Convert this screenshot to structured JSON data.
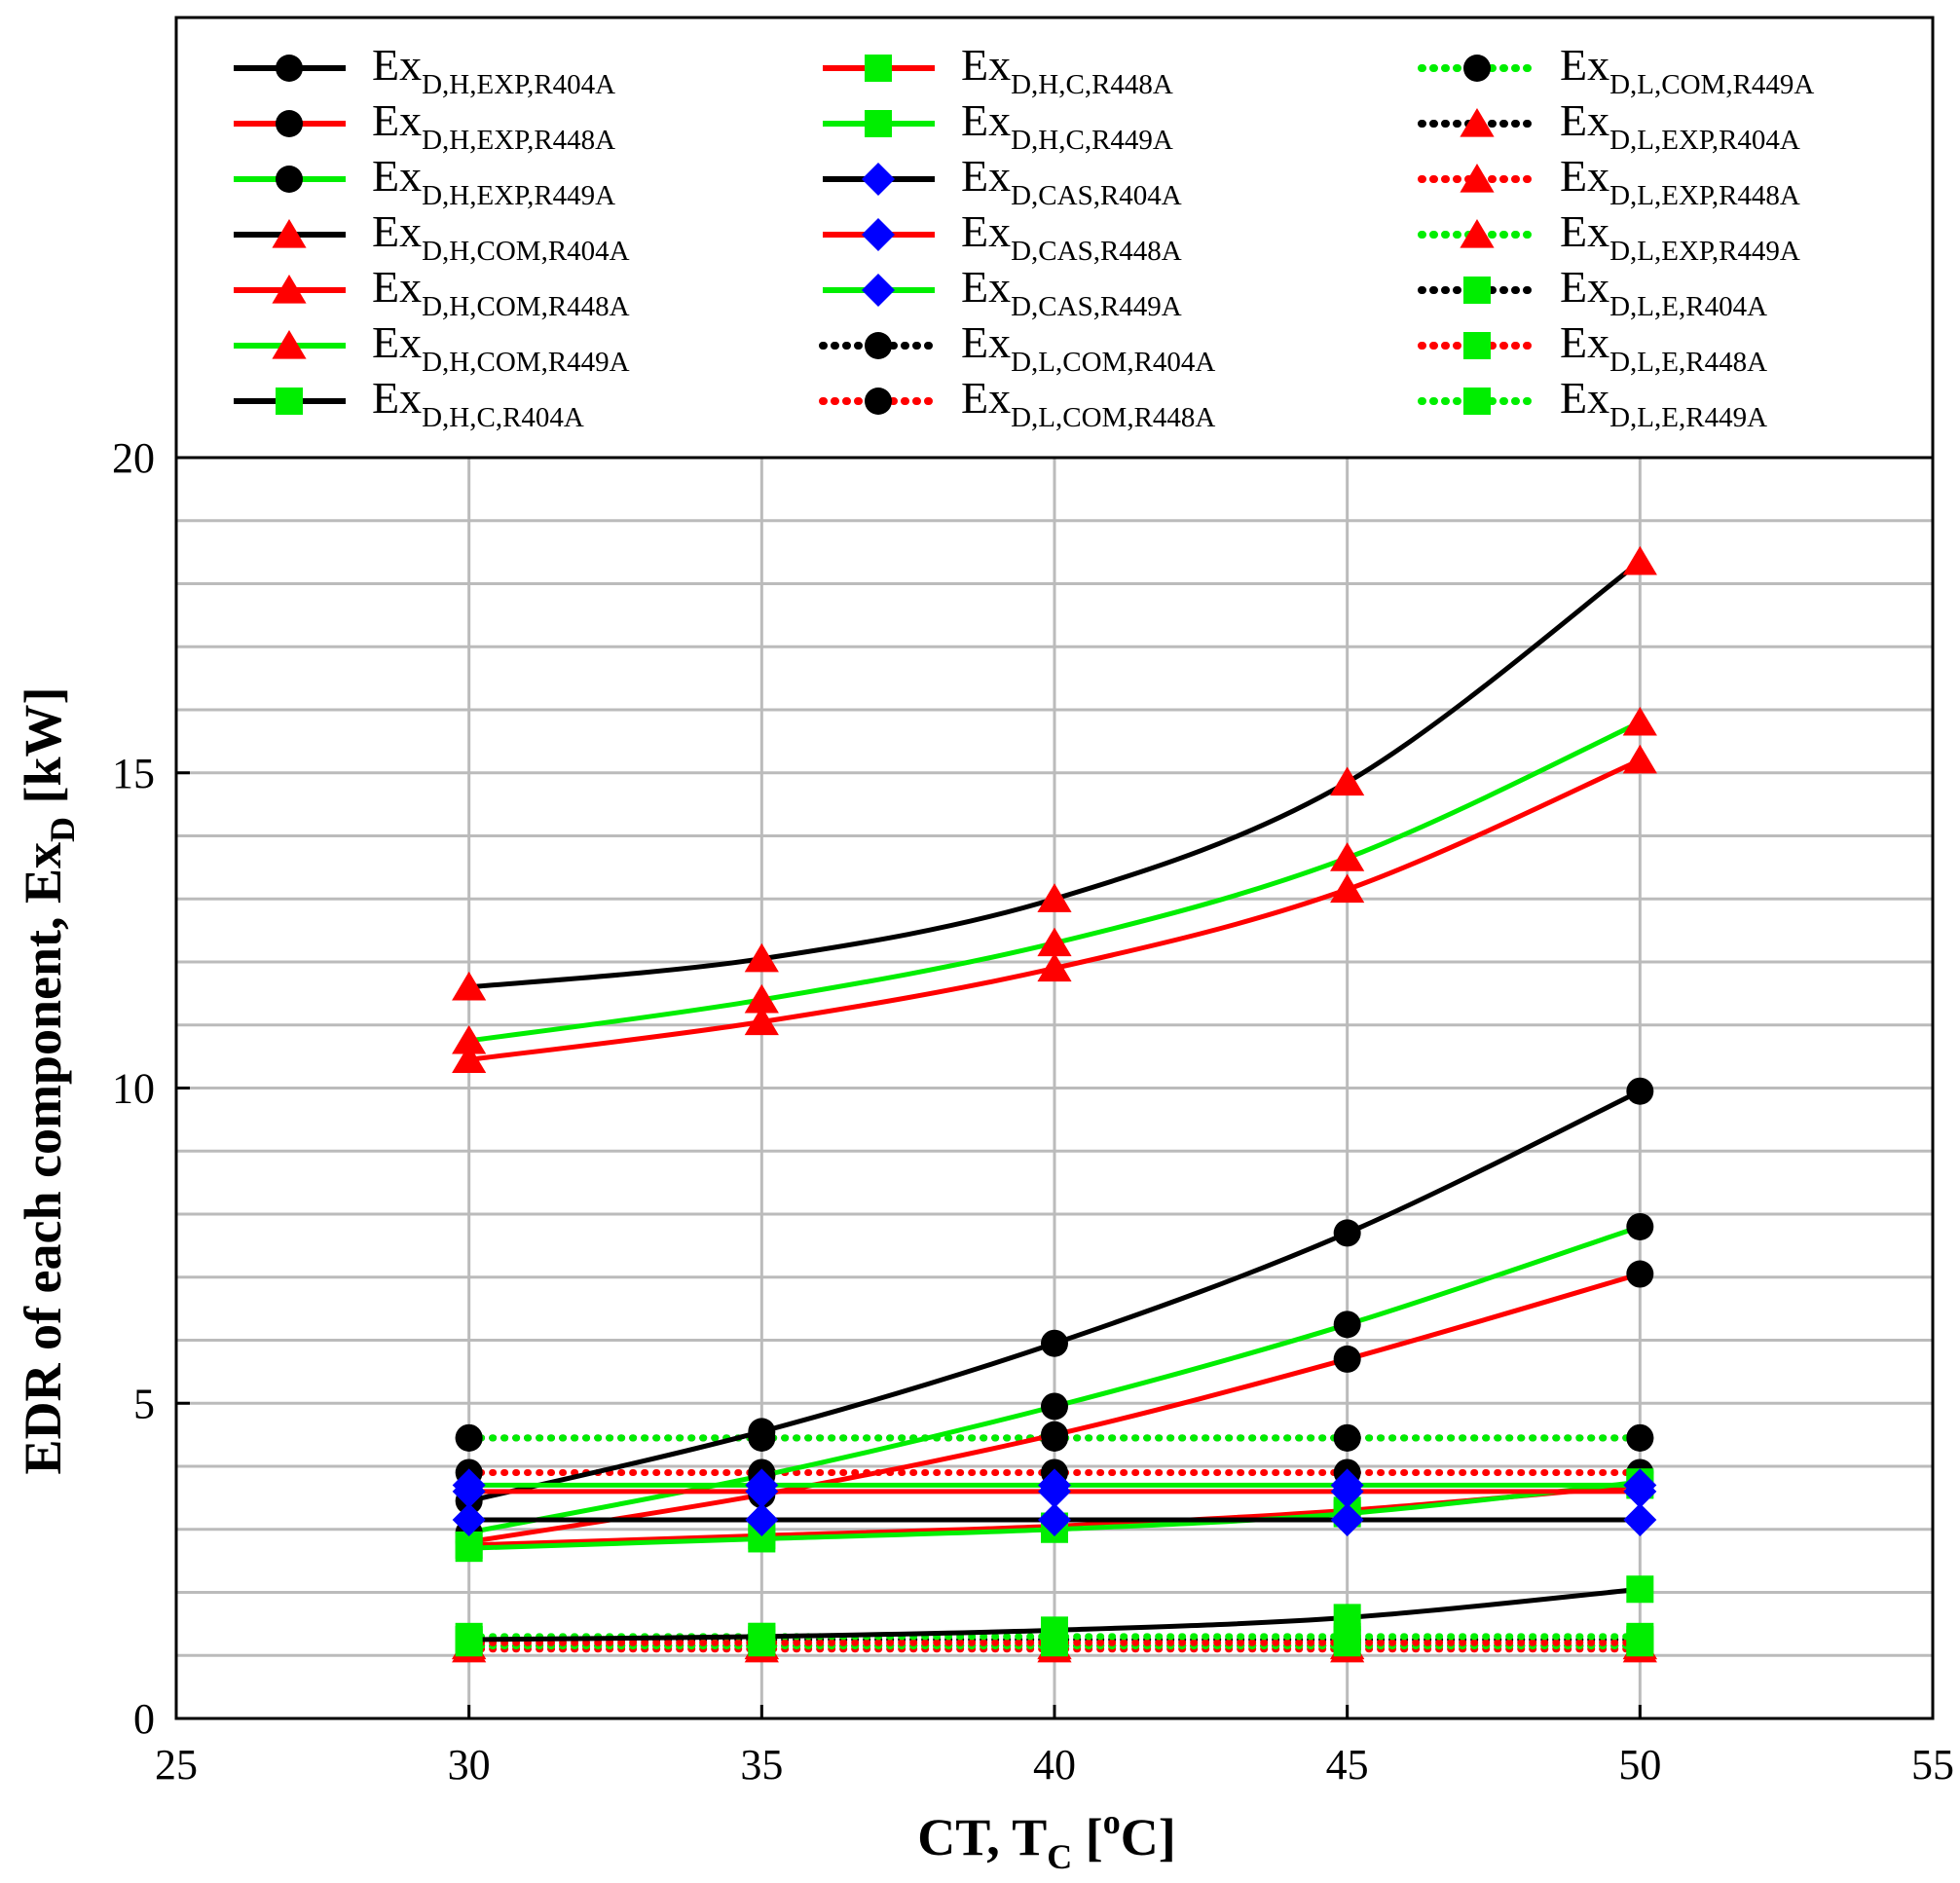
{
  "chart_data": {
    "type": "line",
    "xlabel_main": "CT, T",
    "xlabel_sub": "C",
    "xlabel_open": " [",
    "xlabel_sup": "o",
    "xlabel_close": "C]",
    "ylabel_main": "EDR of each component, Ex",
    "ylabel_sub": "D",
    "ylabel_unit": " [kW]",
    "xlim": [
      25,
      55
    ],
    "ylim": [
      0,
      20
    ],
    "xticks": [
      25,
      30,
      35,
      40,
      45,
      50,
      55
    ],
    "yticks": [
      0,
      5,
      10,
      15,
      20
    ],
    "x": [
      30,
      35,
      40,
      45,
      50
    ],
    "legend_prefix": "Ex",
    "colors": {
      "R404A": "#000000",
      "R448A": "#ff0000",
      "R449A": "#00ee00",
      "diamond": "#0000ff",
      "triangle": "#ff0000",
      "square": "#00ee00",
      "circle": "#000000"
    },
    "series": [
      {
        "name": "D,H,EXP,R404A",
        "color": "#000000",
        "marker": "circle",
        "dash": false,
        "values": [
          3.45,
          4.55,
          5.95,
          7.7,
          9.95
        ]
      },
      {
        "name": "D,H,EXP,R448A",
        "color": "#ff0000",
        "marker": "circle",
        "dash": false,
        "values": [
          2.8,
          3.55,
          4.5,
          5.7,
          7.05
        ]
      },
      {
        "name": "D,H,EXP,R449A",
        "color": "#00ee00",
        "marker": "circle",
        "dash": false,
        "values": [
          2.95,
          3.85,
          4.95,
          6.25,
          7.8
        ]
      },
      {
        "name": "D,H,COM,R404A",
        "color": "#000000",
        "marker": "triangle",
        "dash": false,
        "values": [
          11.6,
          12.05,
          13.0,
          14.85,
          18.35
        ]
      },
      {
        "name": "D,H,COM,R448A",
        "color": "#ff0000",
        "marker": "triangle",
        "dash": false,
        "values": [
          10.45,
          11.05,
          11.9,
          13.15,
          15.2
        ]
      },
      {
        "name": "D,H,COM,R449A",
        "color": "#00ee00",
        "marker": "triangle",
        "dash": false,
        "values": [
          10.75,
          11.4,
          12.3,
          13.65,
          15.8
        ]
      },
      {
        "name": "D,H,C,R404A",
        "color": "#000000",
        "marker": "square",
        "dash": false,
        "values": [
          1.25,
          1.3,
          1.4,
          1.6,
          2.05
        ]
      },
      {
        "name": "D,H,C,R448A",
        "color": "#ff0000",
        "marker": "square",
        "dash": false,
        "values": [
          2.75,
          2.9,
          3.05,
          3.3,
          3.7
        ]
      },
      {
        "name": "D,H,C,R449A",
        "color": "#00ee00",
        "marker": "square",
        "dash": false,
        "values": [
          2.7,
          2.85,
          3.0,
          3.25,
          3.75
        ]
      },
      {
        "name": "D,CAS,R404A",
        "color": "#000000",
        "marker": "diamond",
        "dash": false,
        "values": [
          3.15,
          3.15,
          3.15,
          3.15,
          3.15
        ]
      },
      {
        "name": "D,CAS,R448A",
        "color": "#ff0000",
        "marker": "diamond",
        "dash": false,
        "values": [
          3.6,
          3.6,
          3.6,
          3.6,
          3.6
        ]
      },
      {
        "name": "D,CAS,R449A",
        "color": "#00ee00",
        "marker": "diamond",
        "dash": false,
        "values": [
          3.7,
          3.7,
          3.7,
          3.7,
          3.7
        ]
      },
      {
        "name": "D,L,COM,R404A",
        "color": "#000000",
        "marker": "circle",
        "dash": true,
        "values": [
          4.45,
          4.45,
          4.45,
          4.45,
          4.45
        ]
      },
      {
        "name": "D,L,COM,R448A",
        "color": "#ff0000",
        "marker": "circle",
        "dash": true,
        "values": [
          3.9,
          3.9,
          3.9,
          3.9,
          3.9
        ]
      },
      {
        "name": "D,L,COM,R449A",
        "color": "#00ee00",
        "marker": "circle",
        "dash": true,
        "values": [
          4.45,
          4.45,
          4.45,
          4.45,
          4.45
        ]
      },
      {
        "name": "D,L,EXP,R404A",
        "color": "#000000",
        "marker": "triangle",
        "dash": true,
        "values": [
          1.15,
          1.15,
          1.15,
          1.15,
          1.15
        ]
      },
      {
        "name": "D,L,EXP,R448A",
        "color": "#ff0000",
        "marker": "triangle",
        "dash": true,
        "values": [
          1.1,
          1.1,
          1.1,
          1.1,
          1.1
        ]
      },
      {
        "name": "D,L,EXP,R449A",
        "color": "#00ee00",
        "marker": "triangle",
        "dash": true,
        "values": [
          1.15,
          1.15,
          1.15,
          1.15,
          1.15
        ]
      },
      {
        "name": "D,L,E,R404A",
        "color": "#000000",
        "marker": "square",
        "dash": true,
        "values": [
          1.25,
          1.25,
          1.25,
          1.25,
          1.25
        ]
      },
      {
        "name": "D,L,E,R448A",
        "color": "#ff0000",
        "marker": "square",
        "dash": true,
        "values": [
          1.2,
          1.2,
          1.2,
          1.2,
          1.2
        ]
      },
      {
        "name": "D,L,E,R449A",
        "color": "#00ee00",
        "marker": "square",
        "dash": true,
        "values": [
          1.3,
          1.3,
          1.3,
          1.3,
          1.3
        ]
      }
    ]
  }
}
